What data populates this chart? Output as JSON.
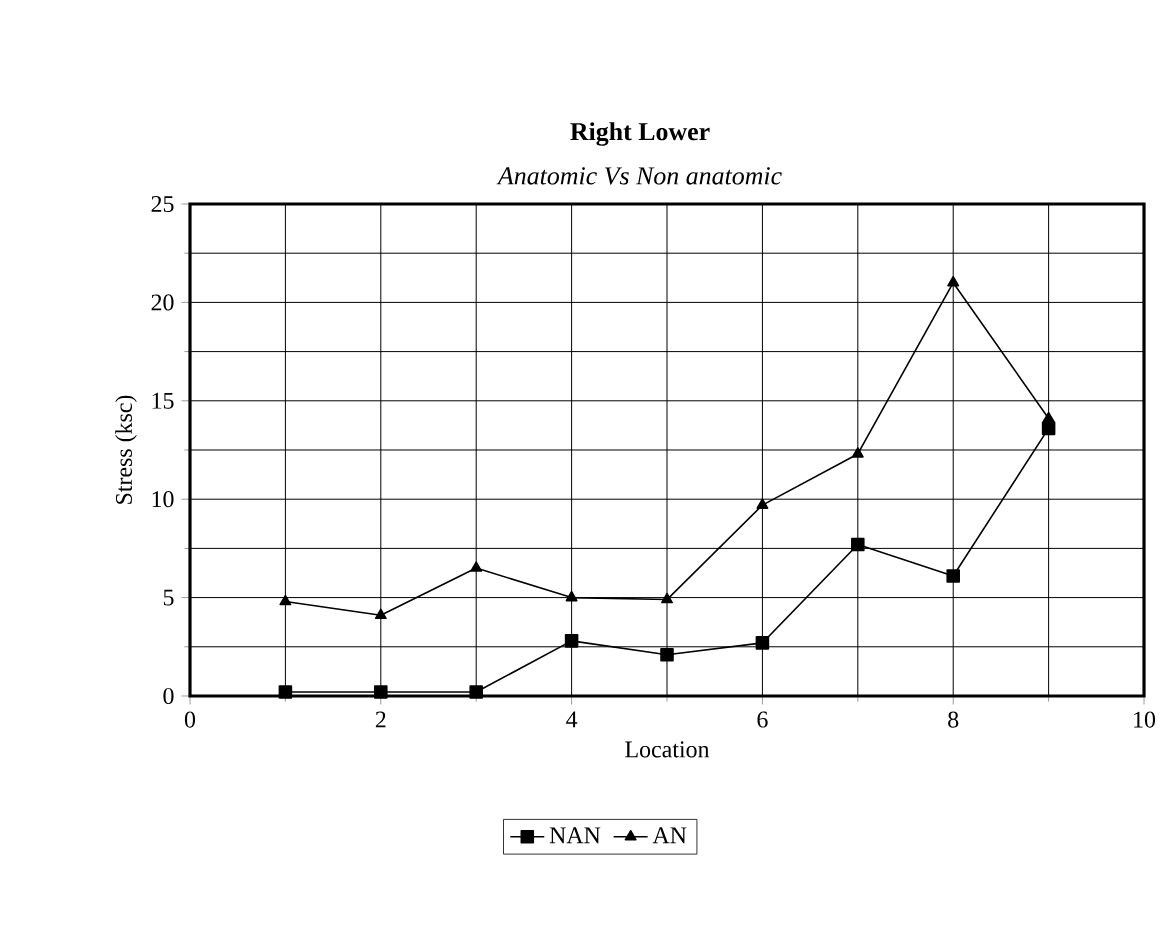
{
  "chart_data": {
    "type": "line",
    "title": "Right Lower",
    "subtitle": "Anatomic Vs Non anatomic",
    "xlabel": "Location",
    "ylabel": "Stress (ksc)",
    "x": [
      1,
      2,
      3,
      4,
      5,
      6,
      7,
      8,
      9
    ],
    "series": [
      {
        "name": "NAN",
        "color": "#000000",
        "marker": "square",
        "values": [
          0.2,
          0.2,
          0.2,
          2.8,
          2.1,
          2.7,
          7.7,
          6.1,
          13.6
        ]
      },
      {
        "name": "AN",
        "color": "#000000",
        "marker": "triangle",
        "values": [
          4.8,
          4.1,
          6.5,
          5.0,
          4.9,
          9.7,
          12.3,
          21.0,
          14.1
        ]
      }
    ],
    "xlim": [
      0,
      10
    ],
    "xticks": [
      0,
      2,
      4,
      6,
      8,
      10
    ],
    "ylim": [
      0,
      25
    ],
    "yticks": [
      0,
      5,
      10,
      15,
      20,
      25
    ],
    "grid": true,
    "legend": "bottom",
    "line_style": "solid"
  }
}
